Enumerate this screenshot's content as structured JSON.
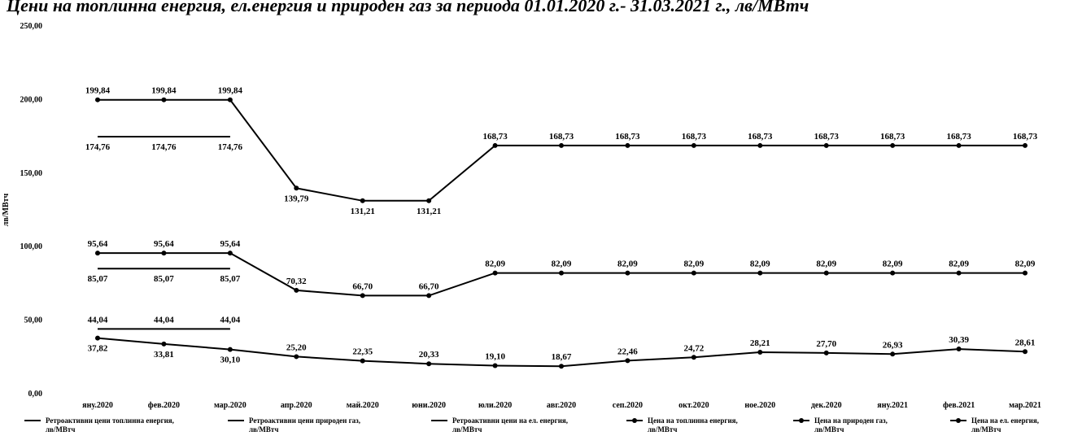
{
  "chart_data": {
    "type": "line",
    "title": "Цени на топлинна енергия, ел.енергия и природен газ за периода 01.01.2020 г.- 31.03.2021 г., лв/МВтч",
    "ylabel": "лв/МВтч",
    "ylim": [
      0,
      250
    ],
    "yticks": [
      "0,00",
      "50,00",
      "100,00",
      "150,00",
      "200,00",
      "250,00"
    ],
    "categories": [
      "яну.2020",
      "фев.2020",
      "мар.2020",
      "апр.2020",
      "май.2020",
      "юни.2020",
      "юли.2020",
      "авг.2020",
      "сеп.2020",
      "окт.2020",
      "ное.2020",
      "дек.2020",
      "яну.2021",
      "фев.2021",
      "мар.2021"
    ],
    "legend_position": "bottom",
    "series": [
      {
        "name": "Ретроактивни цени топлинна енергия, лв/МВтч",
        "values": [
          174.76,
          174.76,
          174.76,
          null,
          null,
          null,
          null,
          null,
          null,
          null,
          null,
          null,
          null,
          null,
          null
        ],
        "labels": [
          "174,76",
          "174,76",
          "174,76"
        ],
        "label_pos": "below",
        "marker": false
      },
      {
        "name": "Ретроактивни цени природен газ, лв/МВтч",
        "values": [
          85.07,
          85.07,
          85.07,
          null,
          null,
          null,
          null,
          null,
          null,
          null,
          null,
          null,
          null,
          null,
          null
        ],
        "labels": [
          "85,07",
          "85,07",
          "85,07"
        ],
        "label_pos": "below",
        "marker": false
      },
      {
        "name": "Ретроактивни цени на ел. енергия, лв/МВтч",
        "values": [
          44.04,
          44.04,
          44.04,
          null,
          null,
          null,
          null,
          null,
          null,
          null,
          null,
          null,
          null,
          null,
          null
        ],
        "labels": [
          "44,04",
          "44,04",
          "44,04"
        ],
        "label_pos": "above",
        "marker": false
      },
      {
        "name": "Цена на топлинна енергия, лв/МВтч",
        "values": [
          199.84,
          199.84,
          199.84,
          139.79,
          131.21,
          131.21,
          168.73,
          168.73,
          168.73,
          168.73,
          168.73,
          168.73,
          168.73,
          168.73,
          168.73
        ],
        "labels": [
          "199,84",
          "199,84",
          "199,84",
          "139,79",
          "131,21",
          "131,21",
          "168,73",
          "168,73",
          "168,73",
          "168,73",
          "168,73",
          "168,73",
          "168,73",
          "168,73",
          "168,73"
        ],
        "label_pos": "mixed",
        "marker": true
      },
      {
        "name": "Цена на природен газ, лв/МВтч",
        "values": [
          95.64,
          95.64,
          95.64,
          70.32,
          66.7,
          66.7,
          82.09,
          82.09,
          82.09,
          82.09,
          82.09,
          82.09,
          82.09,
          82.09,
          82.09
        ],
        "labels": [
          "95,64",
          "95,64",
          "95,64",
          "70,32",
          "66,70",
          "66,70",
          "82,09",
          "82,09",
          "82,09",
          "82,09",
          "82,09",
          "82,09",
          "82,09",
          "82,09",
          "82,09"
        ],
        "label_pos": "above",
        "marker": true
      },
      {
        "name": "Цена на ел. енергия, лв/МВтч",
        "values": [
          37.82,
          33.81,
          30.1,
          25.2,
          22.35,
          20.33,
          19.1,
          18.67,
          22.46,
          24.72,
          28.21,
          27.7,
          26.93,
          30.39,
          28.61
        ],
        "labels": [
          "37,82",
          "33,81",
          "30,10",
          "25,20",
          "22,35",
          "20,33",
          "19,10",
          "18,67",
          "22,46",
          "24,72",
          "28,21",
          "27,70",
          "26,93",
          "30,39",
          "28,61"
        ],
        "label_pos": "mixed",
        "marker": true
      }
    ],
    "grid": false,
    "line_color": "#000000"
  }
}
